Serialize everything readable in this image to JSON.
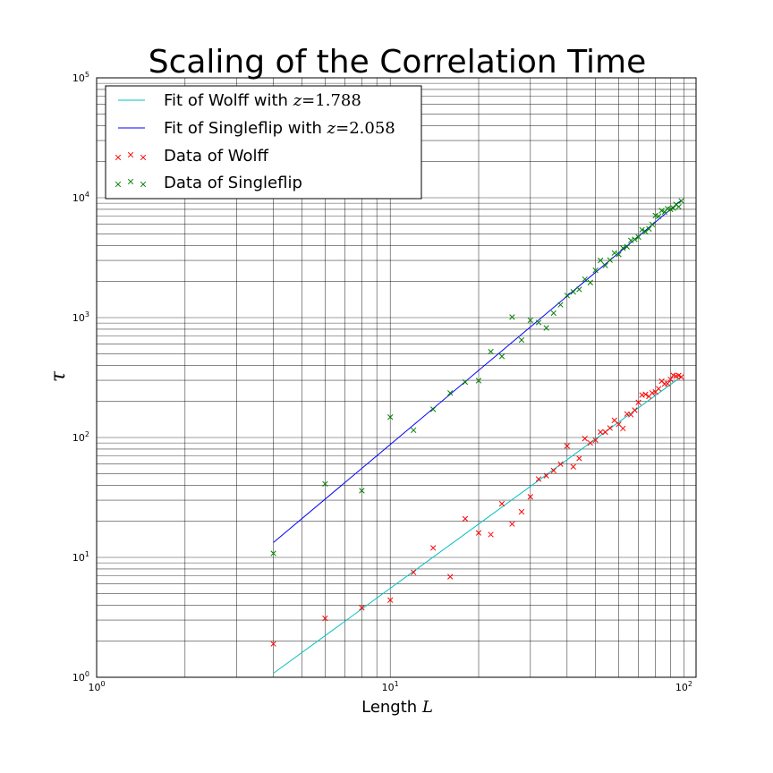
{
  "chart_data": {
    "type": "scatter",
    "title": "Scaling of the Correlation Time",
    "xlabel_text": "Length",
    "xlabel_symbol": "L",
    "ylabel_symbol": "τ",
    "x_scale": "log",
    "y_scale": "log",
    "xlim": [
      1,
      110
    ],
    "ylim": [
      1,
      100000
    ],
    "grid": "major and minor",
    "legend_position": "top-left",
    "x_ticks": [
      {
        "base": "10",
        "exp": "0",
        "value": 1
      },
      {
        "base": "10",
        "exp": "1",
        "value": 10
      },
      {
        "base": "10",
        "exp": "2",
        "value": 100
      }
    ],
    "y_ticks": [
      {
        "base": "10",
        "exp": "0",
        "value": 1
      },
      {
        "base": "10",
        "exp": "1",
        "value": 10
      },
      {
        "base": "10",
        "exp": "2",
        "value": 100
      },
      {
        "base": "10",
        "exp": "3",
        "value": 1000
      },
      {
        "base": "10",
        "exp": "4",
        "value": 10000
      },
      {
        "base": "10",
        "exp": "5",
        "value": 100000
      }
    ],
    "fits": [
      {
        "name_prefix": "Fit of Wolff with ",
        "z_symbol": "z",
        "z_value": "1.788",
        "color": "#00bfbf",
        "z": 1.788,
        "x_range": [
          4,
          98
        ],
        "y_range": [
          1.08,
          322
        ]
      },
      {
        "name_prefix": "Fit of Singleflip with ",
        "z_symbol": "z",
        "z_value": "2.058",
        "color": "#0000ff",
        "z": 2.058,
        "x_range": [
          4,
          98
        ],
        "y_range": [
          13.3,
          9510
        ]
      }
    ],
    "series": [
      {
        "name": "Data of Wolff",
        "color": "#ff0000",
        "marker": "x",
        "points": [
          [
            4,
            1.9
          ],
          [
            6,
            3.1
          ],
          [
            8,
            3.8
          ],
          [
            10,
            4.4
          ],
          [
            12,
            7.5
          ],
          [
            14,
            12
          ],
          [
            16,
            6.9
          ],
          [
            18,
            21
          ],
          [
            20,
            16
          ],
          [
            22,
            15.5
          ],
          [
            24,
            28
          ],
          [
            26,
            19
          ],
          [
            28,
            24
          ],
          [
            30,
            32
          ],
          [
            32,
            45
          ],
          [
            34,
            48
          ],
          [
            36,
            53
          ],
          [
            38,
            60
          ],
          [
            40,
            85
          ],
          [
            42,
            57
          ],
          [
            44,
            67
          ],
          [
            46,
            98
          ],
          [
            48,
            90
          ],
          [
            50,
            95
          ],
          [
            52,
            111
          ],
          [
            54,
            111
          ],
          [
            56,
            120
          ],
          [
            58,
            139
          ],
          [
            60,
            129
          ],
          [
            62,
            119
          ],
          [
            64,
            157
          ],
          [
            66,
            155
          ],
          [
            68,
            169
          ],
          [
            70,
            196
          ],
          [
            72,
            226
          ],
          [
            74,
            229
          ],
          [
            76,
            220
          ],
          [
            78,
            235
          ],
          [
            80,
            240
          ],
          [
            82,
            255
          ],
          [
            84,
            295
          ],
          [
            86,
            280
          ],
          [
            88,
            281
          ],
          [
            90,
            305
          ],
          [
            92,
            330
          ],
          [
            94,
            325
          ],
          [
            96,
            329
          ],
          [
            98,
            320
          ]
        ]
      },
      {
        "name": "Data of Singleflip",
        "color": "#008000",
        "marker": "x",
        "points": [
          [
            4,
            10.8
          ],
          [
            6,
            41
          ],
          [
            8,
            36
          ],
          [
            10,
            148
          ],
          [
            12,
            115
          ],
          [
            14,
            172
          ],
          [
            16,
            235
          ],
          [
            18,
            290
          ],
          [
            20,
            298
          ],
          [
            22,
            520
          ],
          [
            24,
            475
          ],
          [
            26,
            1010
          ],
          [
            28,
            650
          ],
          [
            30,
            950
          ],
          [
            32,
            910
          ],
          [
            34,
            820
          ],
          [
            36,
            1090
          ],
          [
            38,
            1280
          ],
          [
            40,
            1530
          ],
          [
            42,
            1640
          ],
          [
            44,
            1720
          ],
          [
            46,
            2090
          ],
          [
            48,
            1960
          ],
          [
            50,
            2480
          ],
          [
            52,
            3000
          ],
          [
            54,
            2720
          ],
          [
            56,
            3020
          ],
          [
            58,
            3460
          ],
          [
            60,
            3360
          ],
          [
            62,
            3800
          ],
          [
            64,
            3900
          ],
          [
            66,
            4400
          ],
          [
            68,
            4500
          ],
          [
            70,
            4700
          ],
          [
            72,
            5400
          ],
          [
            74,
            5200
          ],
          [
            76,
            5500
          ],
          [
            78,
            6000
          ],
          [
            80,
            7100
          ],
          [
            82,
            7000
          ],
          [
            84,
            7800
          ],
          [
            86,
            7600
          ],
          [
            88,
            8100
          ],
          [
            90,
            8000
          ],
          [
            92,
            8200
          ],
          [
            94,
            8800
          ],
          [
            96,
            8400
          ],
          [
            98,
            9400
          ]
        ]
      }
    ]
  }
}
